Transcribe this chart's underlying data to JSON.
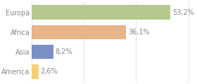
{
  "categories": [
    "America",
    "Asia",
    "Africa",
    "Europa"
  ],
  "values": [
    2.6,
    8.2,
    36.1,
    53.2
  ],
  "bar_colors": [
    "#f5d176",
    "#7b8fc4",
    "#e8b48a",
    "#b5c98e"
  ],
  "bar_labels": [
    "2,6%",
    "8,2%",
    "36,1%",
    "53,2%"
  ],
  "xlim": [
    0,
    62
  ],
  "background_color": "#ffffff",
  "text_color": "#888888",
  "bar_height": 0.72,
  "label_fontsize": 7.0,
  "tick_fontsize": 7.0,
  "grid_color": "#e0e0e0"
}
